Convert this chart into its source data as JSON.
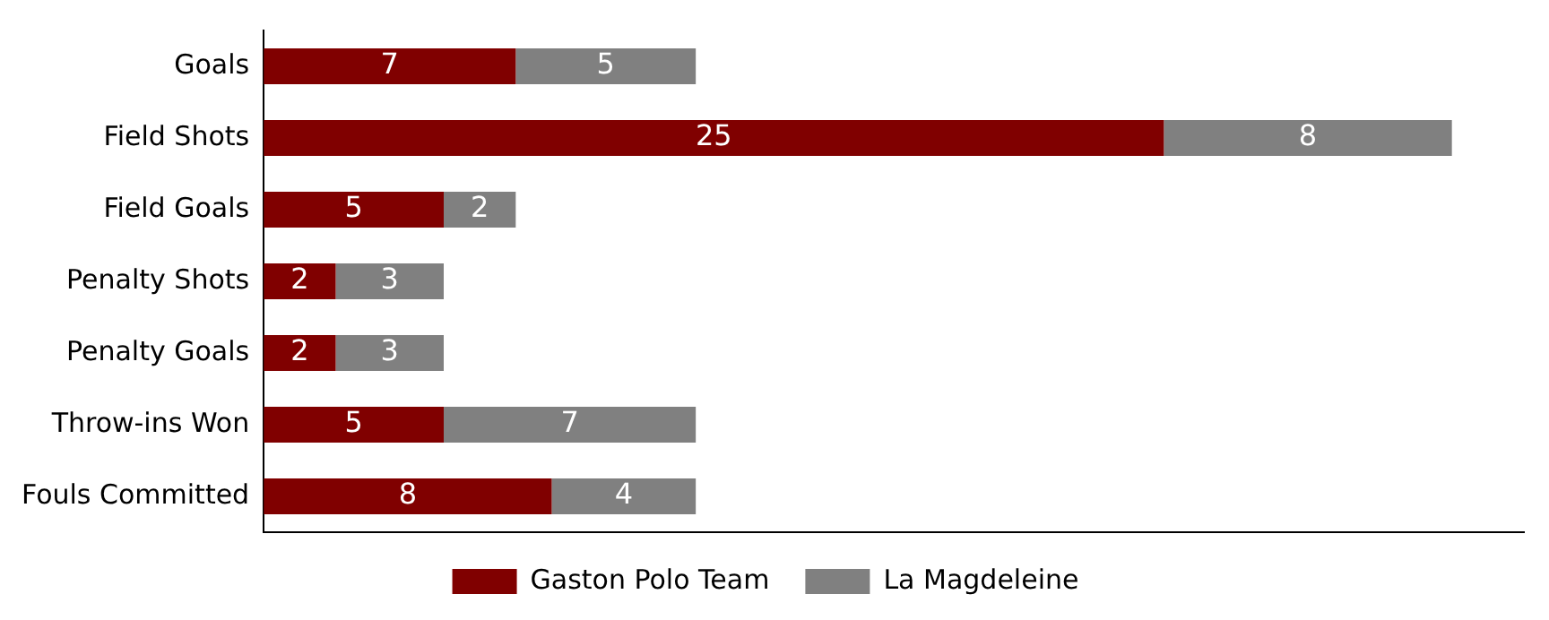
{
  "chart_data": {
    "type": "bar",
    "orientation": "horizontal",
    "stacked": true,
    "categories": [
      "Goals",
      "Field Shots",
      "Field Goals",
      "Penalty Shots",
      "Penalty Goals",
      "Throw-ins Won",
      "Fouls Committed"
    ],
    "series": [
      {
        "name": "Gaston Polo Team",
        "color": "#800000",
        "values": [
          7,
          25,
          5,
          2,
          2,
          5,
          8
        ]
      },
      {
        "name": "La Magdeleine",
        "color": "#808080",
        "values": [
          5,
          8,
          2,
          3,
          3,
          7,
          4
        ]
      }
    ],
    "data_labels": true,
    "tick_labels": "y",
    "legend": "bottom",
    "grid": false
  }
}
